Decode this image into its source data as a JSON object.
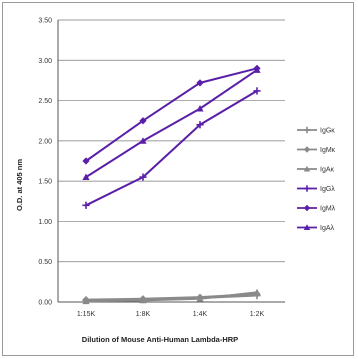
{
  "chart_data": {
    "type": "line",
    "title": "",
    "xlabel": "Dilution of Mouse Anti-Human Lambda-HRP",
    "ylabel": "O.D. at 405 nm",
    "categories": [
      "1:15K",
      "1:8K",
      "1:4K",
      "1:2K"
    ],
    "ylim": [
      0,
      3.5
    ],
    "yticks": [
      "0.00",
      "0.50",
      "1.00",
      "1.50",
      "2.00",
      "2.50",
      "3.00",
      "3.50"
    ],
    "grid": true,
    "legend_position": "right",
    "series": [
      {
        "name": "IgGκ",
        "values": [
          0.02,
          0.03,
          0.05,
          0.08
        ],
        "color": "#8a8a8a",
        "marker": "plus"
      },
      {
        "name": "IgMκ",
        "values": [
          0.03,
          0.04,
          0.06,
          0.1
        ],
        "color": "#8a8a8a",
        "marker": "diamond"
      },
      {
        "name": "IgAκ",
        "values": [
          0.01,
          0.02,
          0.04,
          0.12
        ],
        "color": "#8a8a8a",
        "marker": "triangle"
      },
      {
        "name": "IgGλ",
        "values": [
          1.2,
          1.55,
          2.2,
          2.62
        ],
        "color": "#5a1fa8",
        "marker": "plus"
      },
      {
        "name": "IgMλ",
        "values": [
          1.75,
          2.25,
          2.72,
          2.9
        ],
        "color": "#5a1fa8",
        "marker": "diamond"
      },
      {
        "name": "IgAλ",
        "values": [
          1.55,
          2.0,
          2.4,
          2.88
        ],
        "color": "#5a1fa8",
        "marker": "triangle"
      }
    ]
  }
}
